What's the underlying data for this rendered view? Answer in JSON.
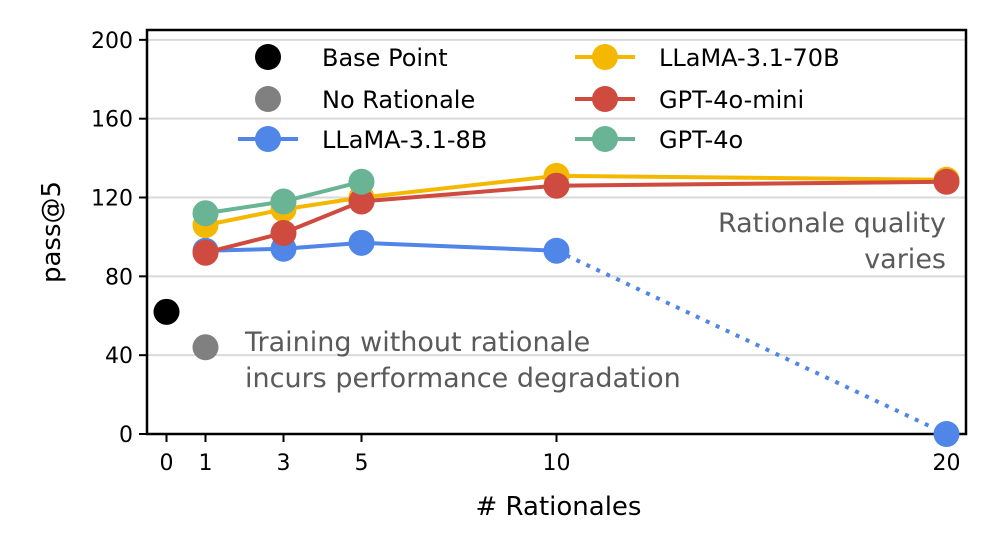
{
  "chart_data": {
    "type": "line",
    "xlabel": "# Rationales",
    "ylabel": "pass@5",
    "xlim": [
      -0.5,
      20.5
    ],
    "ylim": [
      0,
      205
    ],
    "xticks": [
      0,
      1,
      3,
      5,
      10,
      20
    ],
    "yticks": [
      0,
      40,
      80,
      120,
      160,
      200
    ],
    "grid": "horizontal",
    "points": [
      {
        "name": "Base Point",
        "x": 0,
        "y": 62,
        "color": "#000000"
      },
      {
        "name": "No Rationale",
        "x": 1,
        "y": 44,
        "color": "#808080"
      }
    ],
    "series": [
      {
        "name": "LLaMA-3.1-8B",
        "color": "#4f86e8",
        "x": [
          1,
          3,
          5,
          10
        ],
        "values": [
          93,
          94,
          97,
          93
        ],
        "extension": {
          "x": [
            10,
            20
          ],
          "values": [
            93,
            0
          ],
          "style": "dotted"
        }
      },
      {
        "name": "LLaMA-3.1-70B",
        "color": "#f5b800",
        "x": [
          1,
          3,
          5,
          10,
          20
        ],
        "values": [
          106,
          114,
          120,
          131,
          129
        ]
      },
      {
        "name": "GPT-4o-mini",
        "color": "#cf4a3f",
        "x": [
          1,
          3,
          5,
          10,
          20
        ],
        "values": [
          92,
          102,
          118,
          126,
          128
        ]
      },
      {
        "name": "GPT-4o",
        "color": "#68b495",
        "x": [
          1,
          3,
          5
        ],
        "values": [
          112,
          118,
          128
        ]
      }
    ],
    "legend": {
      "placement": "top",
      "columns": [
        [
          "Base Point",
          "No Rationale",
          "LLaMA-3.1-8B"
        ],
        [
          "LLaMA-3.1-70B",
          "GPT-4o-mini",
          "GPT-4o"
        ]
      ]
    },
    "annotations": [
      {
        "id": "quality",
        "lines": [
          "Rationale quality",
          "varies"
        ],
        "color": "#5a5a5a"
      },
      {
        "id": "degradation",
        "lines": [
          "Training without rationale",
          "incurs performance degradation"
        ],
        "color": "#5a5a5a"
      }
    ]
  }
}
